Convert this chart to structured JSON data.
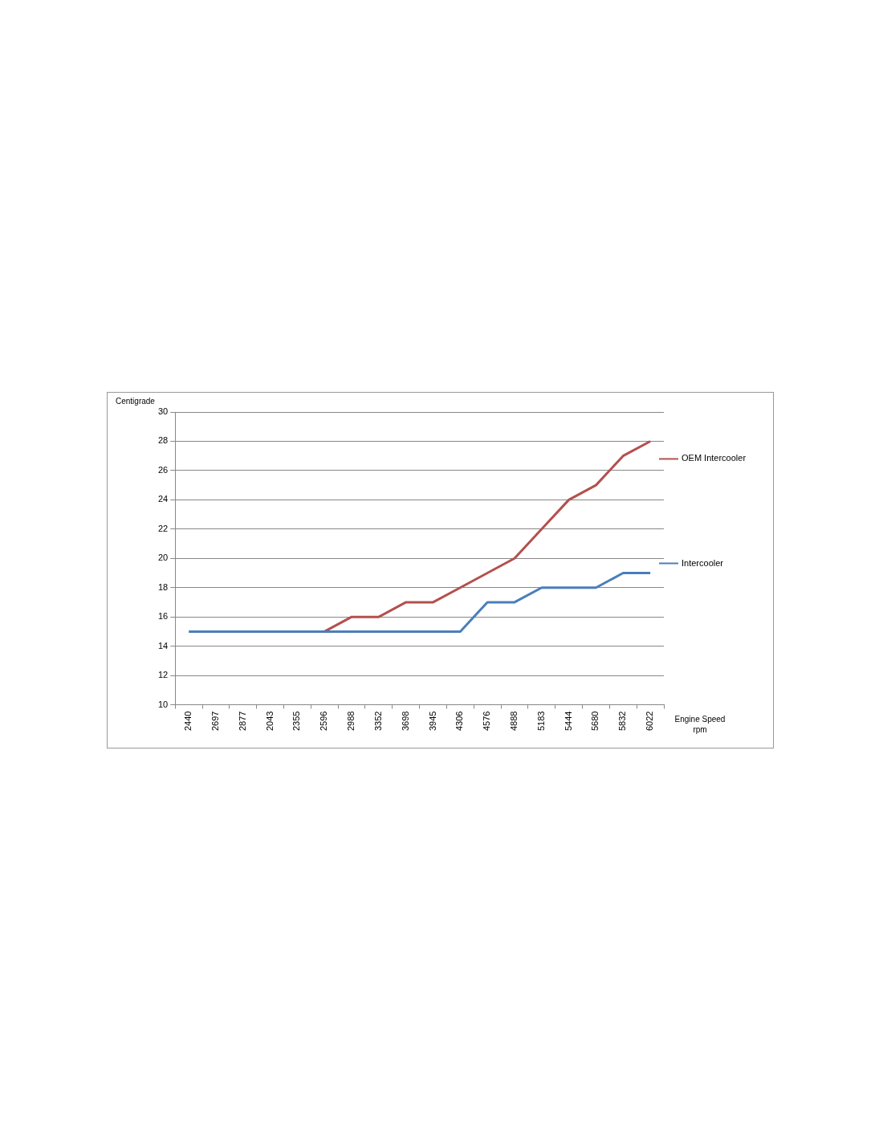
{
  "chart_data": {
    "type": "line",
    "ylabel": "Centigrade",
    "xlabel": "Engine Speed rpm",
    "categories": [
      "2440",
      "2697",
      "2877",
      "2043",
      "2355",
      "2596",
      "2988",
      "3352",
      "3698",
      "3945",
      "4306",
      "4576",
      "4888",
      "5183",
      "5444",
      "5680",
      "5832",
      "6022"
    ],
    "series": [
      {
        "name": "OEM Intercooler",
        "color": "#b3504d",
        "values": [
          null,
          null,
          null,
          null,
          null,
          15,
          16,
          16,
          17,
          17,
          18,
          19,
          20,
          22,
          24,
          25,
          27,
          28
        ]
      },
      {
        "name": "Intercooler",
        "color": "#4a7ebb",
        "values": [
          15,
          15,
          15,
          15,
          15,
          15,
          15,
          15,
          15,
          15,
          15,
          17,
          17,
          18,
          18,
          18,
          19,
          19
        ]
      }
    ],
    "ylim": [
      10,
      30
    ],
    "yticks": [
      10,
      12,
      14,
      16,
      18,
      20,
      22,
      24,
      26,
      28,
      30
    ],
    "grid": "y",
    "legend": "right",
    "marker": "none",
    "line_style": "solid"
  }
}
